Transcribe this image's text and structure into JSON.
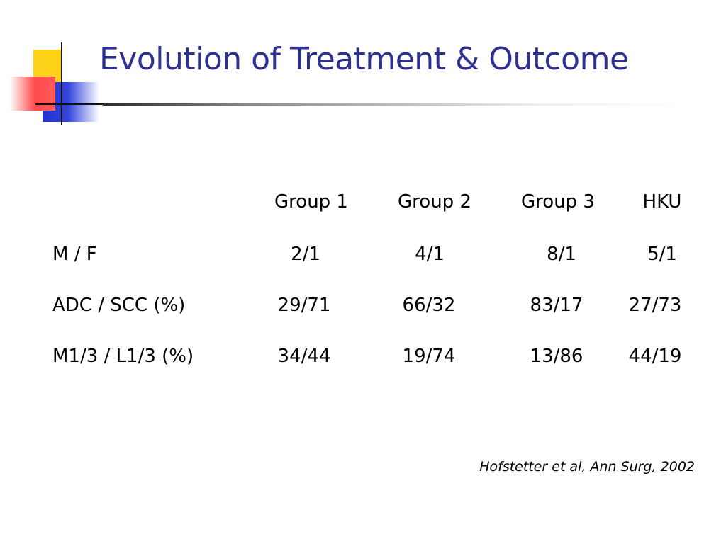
{
  "title": "Evolution of Treatment & Outcome",
  "table": {
    "headers": [
      "Group 1",
      "Group 2",
      "Group 3",
      "HKU"
    ],
    "rows": [
      {
        "label": "M / F",
        "values": [
          "2/1",
          "4/1",
          "8/1",
          "5/1"
        ]
      },
      {
        "label": "ADC / SCC (%)",
        "values": [
          "29/71",
          "66/32",
          "83/17",
          "27/73"
        ]
      },
      {
        "label": "M1/3 / L1/3  (%)",
        "values": [
          "34/44",
          "19/74",
          "13/86",
          "44/19"
        ]
      }
    ]
  },
  "citation": "Hofstetter et al, Ann Surg, 2002",
  "colors": {
    "title": "#2e3192",
    "accent_yellow": "#ffd21a",
    "accent_red": "#ff4a4a",
    "accent_blue": "#2233cc"
  }
}
